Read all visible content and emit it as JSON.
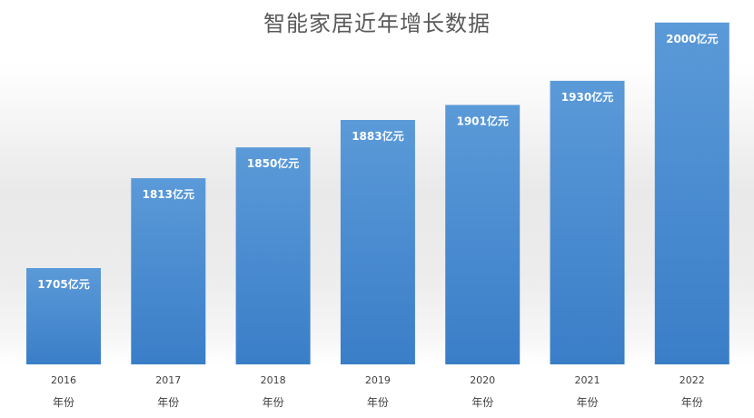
{
  "chart_data": {
    "type": "bar",
    "title": "智能家居近年增长数据",
    "categories": [
      "2016",
      "2017",
      "2018",
      "2019",
      "2020",
      "2021",
      "2022"
    ],
    "values": [
      1705,
      1813,
      1850,
      1883,
      1901,
      1930,
      2000
    ],
    "data_labels": [
      "1705亿元",
      "1813亿元",
      "1850亿元",
      "1883亿元",
      "1901亿元",
      "1930亿元",
      "2000亿元"
    ],
    "x_unit_label": "年份",
    "bar_color": "#4a8fd4",
    "bar_color_bottom": "#3a7ec8",
    "grid": false,
    "legend": false
  }
}
